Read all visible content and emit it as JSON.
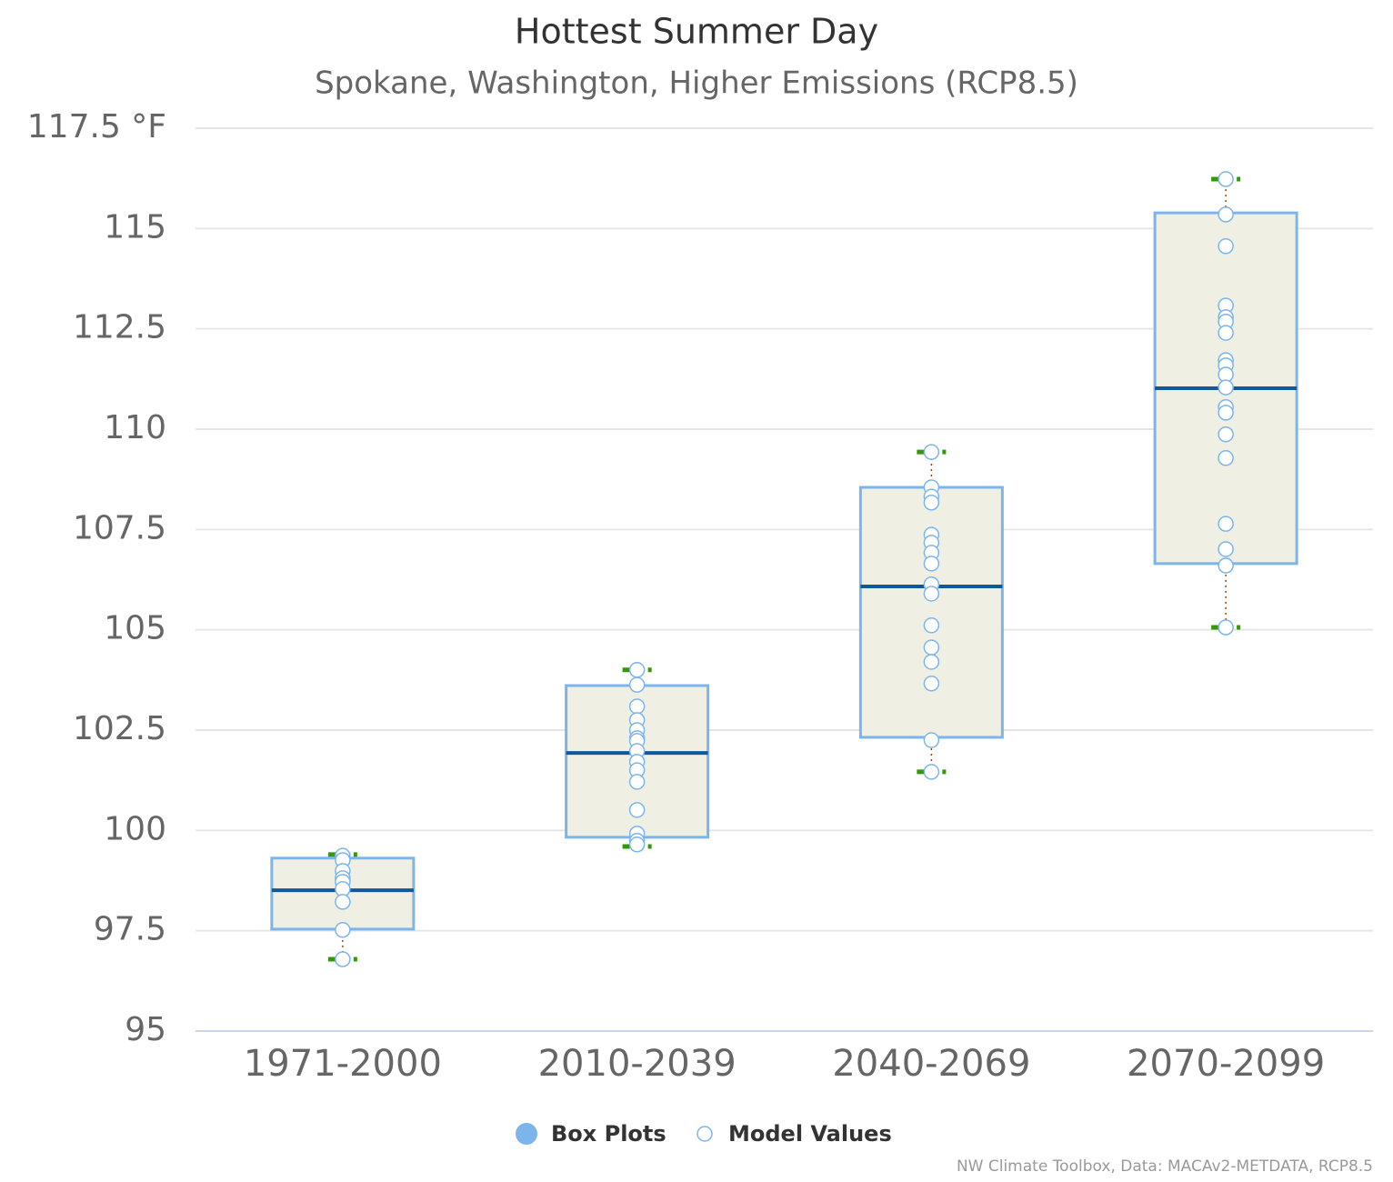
{
  "chart_data": {
    "type": "boxplot",
    "title": "Hottest Summer Day",
    "subtitle": "Spokane, Washington, Higher Emissions (RCP8.5)",
    "categories": [
      "1971-2000",
      "2010-2039",
      "2040-2069",
      "2070-2099"
    ],
    "ylim": [
      95,
      117.5
    ],
    "yticks": [
      95,
      97.5,
      100,
      102.5,
      105,
      107.5,
      110,
      112.5,
      115,
      {
        "value": 117.5,
        "label": "117.5 °F"
      }
    ],
    "grid": true,
    "series": [
      {
        "name": "Box Plots",
        "color": "#7cb5ec",
        "fill": "#efefe3",
        "median_color": "#11579b",
        "whisker_color": "#339900",
        "low": [
          96.79,
          99.6,
          101.46,
          105.06
        ],
        "q1": [
          97.54,
          99.83,
          102.32,
          106.65
        ],
        "median": [
          98.51,
          101.93,
          106.08,
          111.02
        ],
        "q3": [
          99.31,
          103.61,
          108.55,
          115.39
        ],
        "high": [
          99.4,
          104.0,
          109.43,
          116.23
        ]
      },
      {
        "name": "Model Values",
        "color": "#7cb5ec",
        "values": [
          [
            99.37,
            99.26,
            98.99,
            98.81,
            98.72,
            98.54,
            98.22,
            97.52,
            96.79
          ],
          [
            104.0,
            103.63,
            103.09,
            102.75,
            102.5,
            102.3,
            102.23,
            101.98,
            101.71,
            101.5,
            101.21,
            100.51,
            99.92,
            99.74,
            99.65
          ],
          [
            109.43,
            108.55,
            108.32,
            108.17,
            107.37,
            107.17,
            106.92,
            106.65,
            106.13,
            105.9,
            105.11,
            104.56,
            104.2,
            103.66,
            102.25,
            101.46
          ],
          [
            116.23,
            115.35,
            114.56,
            113.08,
            112.79,
            112.68,
            112.4,
            111.72,
            111.59,
            111.36,
            111.04,
            110.55,
            110.41,
            109.87,
            109.28,
            107.64,
            107.01,
            106.6,
            105.06
          ]
        ]
      }
    ],
    "credits": "NW Climate Toolbox, Data: MACAv2-METDATA, RCP8.5"
  }
}
